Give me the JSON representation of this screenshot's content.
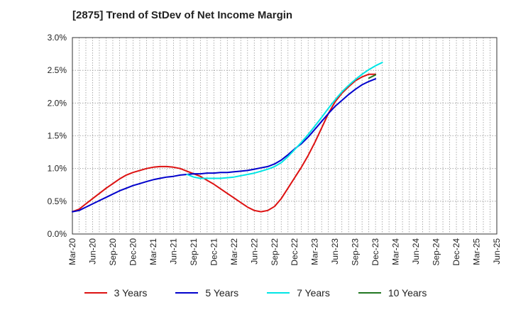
{
  "chart_data": {
    "type": "line",
    "title": "[2875]  Trend of StDev of Net Income Margin",
    "x_tick_labels": [
      "Mar-20",
      "Jun-20",
      "Sep-20",
      "Dec-20",
      "Mar-21",
      "Jun-21",
      "Sep-21",
      "Dec-21",
      "Mar-22",
      "Jun-22",
      "Sep-22",
      "Dec-22",
      "Mar-23",
      "Jun-23",
      "Sep-23",
      "Dec-23",
      "Mar-24",
      "Jun-24",
      "Sep-24",
      "Dec-24",
      "Mar-25",
      "Jun-25"
    ],
    "y_tick_labels": [
      "0.0%",
      "0.5%",
      "1.0%",
      "1.5%",
      "2.0%",
      "2.5%",
      "3.0%"
    ],
    "ylim": [
      0,
      3.0
    ],
    "y_unit": "%",
    "grid": true,
    "legend_position": "bottom",
    "series": [
      {
        "name": "3 Years",
        "color": "#dd1111",
        "start_index": 0,
        "values": [
          0.34,
          0.38,
          0.46,
          0.54,
          0.62,
          0.7,
          0.77,
          0.84,
          0.9,
          0.94,
          0.97,
          1.0,
          1.02,
          1.03,
          1.03,
          1.02,
          1.0,
          0.96,
          0.92,
          0.88,
          0.82,
          0.76,
          0.69,
          0.62,
          0.55,
          0.48,
          0.41,
          0.36,
          0.34,
          0.36,
          0.42,
          0.54,
          0.7,
          0.86,
          1.02,
          1.2,
          1.4,
          1.62,
          1.84,
          2.02,
          2.15,
          2.25,
          2.34,
          2.4,
          2.44,
          2.44
        ]
      },
      {
        "name": "5 Years",
        "color": "#0000cc",
        "start_index": 0,
        "values": [
          0.34,
          0.36,
          0.41,
          0.46,
          0.51,
          0.56,
          0.61,
          0.66,
          0.7,
          0.74,
          0.77,
          0.8,
          0.83,
          0.85,
          0.87,
          0.88,
          0.9,
          0.91,
          0.92,
          0.92,
          0.93,
          0.93,
          0.94,
          0.94,
          0.95,
          0.96,
          0.97,
          0.99,
          1.01,
          1.03,
          1.07,
          1.13,
          1.21,
          1.3,
          1.38,
          1.48,
          1.6,
          1.72,
          1.84,
          1.95,
          2.04,
          2.13,
          2.21,
          2.28,
          2.33,
          2.37
        ]
      },
      {
        "name": "7 Years",
        "color": "#00e5e5",
        "start_index": 17,
        "values": [
          0.91,
          0.87,
          0.85,
          0.85,
          0.85,
          0.85,
          0.86,
          0.87,
          0.89,
          0.91,
          0.93,
          0.96,
          0.99,
          1.03,
          1.09,
          1.18,
          1.29,
          1.4,
          1.52,
          1.65,
          1.78,
          1.92,
          2.05,
          2.17,
          2.27,
          2.36,
          2.44,
          2.51,
          2.57,
          2.62
        ]
      },
      {
        "name": "10 Years",
        "color": "#227722",
        "start_index": 44,
        "values": [
          2.38,
          2.43
        ]
      }
    ]
  }
}
